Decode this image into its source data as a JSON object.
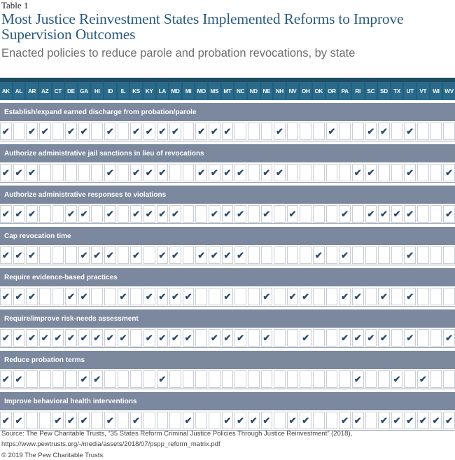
{
  "header": {
    "table_label": "Table 1",
    "title": "Most Justice Reinvestment States Implemented Reforms to Improve Supervision Outcomes",
    "subtitle": "Enacted policies to reduce parole and probation revocations, by state"
  },
  "states": [
    "AK",
    "AL",
    "AR",
    "AZ",
    "CT",
    "DE",
    "GA",
    "HI",
    "ID",
    "IL",
    "KS",
    "KY",
    "LA",
    "MD",
    "MI",
    "MO",
    "MS",
    "MT",
    "NC",
    "ND",
    "NE",
    "NH",
    "NV",
    "OH",
    "OK",
    "OR",
    "PA",
    "RI",
    "SC",
    "SD",
    "TX",
    "UT",
    "VT",
    "WI",
    "WV"
  ],
  "check_symbol": "✔",
  "colors": {
    "header_bg": "#235f7e",
    "policy_bg": "#7b889e",
    "check": "#2b4a6e",
    "title": "#2a5b7f"
  },
  "policies": [
    {
      "label": "Establish/expand earned discharge from probation/parole",
      "checks": [
        "AK",
        "AR",
        "AZ",
        "DE",
        "GA",
        "ID",
        "KS",
        "KY",
        "LA",
        "MD",
        "MO",
        "MS",
        "MT",
        "NH",
        "OR",
        "SC",
        "SD",
        "UT"
      ]
    },
    {
      "label": "Authorize administrative jail sanctions in lieu of revocations",
      "checks": [
        "AK",
        "AL",
        "AR",
        "ID",
        "KS",
        "KY",
        "LA",
        "MO",
        "MS",
        "MT",
        "NC",
        "NE",
        "NH",
        "RI",
        "SC",
        "UT",
        "WV"
      ]
    },
    {
      "label": "Authorize administrative responses to violations",
      "checks": [
        "AK",
        "AL",
        "AR",
        "DE",
        "GA",
        "ID",
        "KS",
        "KY",
        "LA",
        "MD",
        "MS",
        "MT",
        "NC",
        "NE",
        "NV",
        "PA",
        "SC",
        "SD",
        "TX",
        "UT",
        "WV"
      ]
    },
    {
      "label": "Cap revocation time",
      "checks": [
        "AK",
        "AL",
        "AR",
        "GA",
        "HI",
        "ID",
        "KS",
        "LA",
        "MD",
        "MO",
        "MS",
        "MT",
        "NC",
        "OK",
        "PA",
        "UT"
      ]
    },
    {
      "label": "Require evidence-based practices",
      "checks": [
        "AK",
        "AL",
        "AR",
        "DE",
        "GA",
        "IL",
        "KY",
        "LA",
        "MD",
        "MI",
        "MT",
        "NE",
        "NV",
        "OH",
        "PA",
        "RI",
        "SD",
        "UT"
      ]
    },
    {
      "label": "Require/improve risk-needs assessment",
      "checks": [
        "AK",
        "AL",
        "AR",
        "AZ",
        "CT",
        "DE",
        "GA",
        "HI",
        "ID",
        "IL",
        "KY",
        "LA",
        "MD",
        "MI",
        "MS",
        "MT",
        "NC",
        "NE",
        "OH",
        "PA",
        "RI",
        "SC",
        "SD",
        "UT",
        "WV"
      ]
    },
    {
      "label": "Reduce probation terms",
      "checks": [
        "AK",
        "AL",
        "GA",
        "HI",
        "LA",
        "RI",
        "TX",
        "VT"
      ]
    },
    {
      "label": "Improve behavioral health interventions",
      "checks": [
        "AK",
        "AL",
        "CT",
        "DE",
        "GA",
        "ID",
        "KS",
        "MI",
        "MT",
        "NC",
        "ND",
        "NE",
        "NV",
        "OH",
        "PA",
        "RI",
        "SD",
        "TX",
        "UT",
        "VT",
        "WI",
        "WV"
      ]
    }
  ],
  "footer": {
    "source": "Source: The Pew Charitable Trusts, “35 States Reform Criminal Justice Policies Through Justice Reinvestment” (2018), https://www.pewtrusts.org/-/media/assets/2018/07/pspp_reform_matrix.pdf",
    "copyright": "© 2019 The Pew Charitable Trusts"
  }
}
